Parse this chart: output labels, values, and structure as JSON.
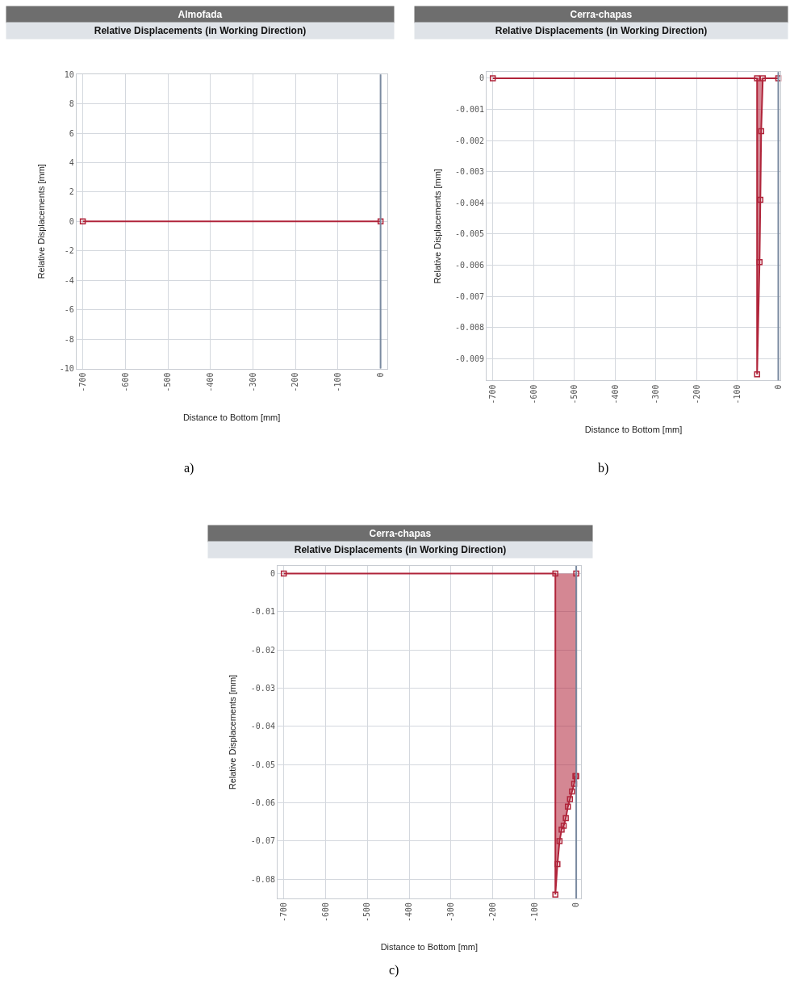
{
  "chart_data": [
    {
      "type": "line",
      "title": "Almofada",
      "subtitle": "Relative Displacements (in Working Direction)",
      "xlabel": "Distance to Bottom [mm]",
      "ylabel": "Relative Displacements [mm]",
      "annotations": [
        "a)"
      ],
      "series": [
        {
          "color": "#b0243a",
          "x": [
            -700,
            0
          ],
          "values": [
            0,
            0
          ]
        }
      ],
      "xlim": [
        -715,
        15
      ],
      "xticks": [
        -700,
        -600,
        -500,
        -400,
        -300,
        -200,
        -100,
        0
      ],
      "ylim": [
        -10,
        10
      ],
      "yticks": [
        -10,
        -8,
        -6,
        -4,
        -2,
        0,
        2,
        4,
        6,
        8,
        10
      ],
      "ref_lines": [
        {
          "axis": "x",
          "value": 0,
          "color": "#7a8aa0"
        }
      ],
      "grid": true,
      "marker": "square",
      "line_style": "solid"
    },
    {
      "type": "area",
      "title": "Cerra-chapas",
      "subtitle": "Relative Displacements (in Working Direction)",
      "xlabel": "Distance to Bottom [mm]",
      "ylabel": "Relative Displacements [mm]",
      "annotations": [
        "b)"
      ],
      "series": [
        {
          "color": "#b0243a",
          "x": [
            -700,
            -52,
            -52,
            -46,
            -44,
            -42,
            -38,
            0
          ],
          "values": [
            0,
            0,
            -0.0095,
            -0.0059,
            -0.0039,
            -0.0017,
            0,
            0
          ]
        }
      ],
      "xlim": [
        -715,
        5
      ],
      "xticks": [
        -700,
        -600,
        -500,
        -400,
        -300,
        -200,
        -100,
        0
      ],
      "ylim": [
        -0.0097,
        0.0002
      ],
      "yticks": [
        -0.009,
        -0.008,
        -0.007,
        -0.006,
        -0.005,
        -0.004,
        -0.003,
        -0.002,
        -0.001,
        0
      ],
      "ref_lines": [
        {
          "axis": "x",
          "value": 0,
          "color": "#7a8aa0"
        }
      ],
      "grid": true,
      "marker": "square",
      "line_style": "solid"
    },
    {
      "type": "area",
      "title": "Cerra-chapas",
      "subtitle": "Relative Displacements (in Working Direction)",
      "xlabel": "Distance to Bottom [mm]",
      "ylabel": "Relative Displacements [mm]",
      "annotations": [
        "c)"
      ],
      "series": [
        {
          "color": "#b0243a",
          "x": [
            -700,
            -50,
            -50,
            -45,
            -40,
            -35,
            -30,
            -25,
            -20,
            -15,
            -10,
            -5,
            -2,
            0,
            0
          ],
          "values": [
            0,
            0,
            -0.084,
            -0.076,
            -0.07,
            -0.067,
            -0.066,
            -0.064,
            -0.061,
            -0.059,
            -0.057,
            -0.055,
            -0.053,
            -0.053,
            0
          ]
        }
      ],
      "xlim": [
        -715,
        11
      ],
      "xticks": [
        -700,
        -600,
        -500,
        -400,
        -300,
        -200,
        -100,
        0
      ],
      "ylim": [
        -0.085,
        0.002
      ],
      "yticks": [
        -0.08,
        -0.07,
        -0.06,
        -0.05,
        -0.04,
        -0.03,
        -0.02,
        -0.01,
        0
      ],
      "ref_lines": [
        {
          "axis": "x",
          "value": 0,
          "color": "#7a8aa0"
        }
      ],
      "grid": true,
      "marker": "square",
      "line_style": "solid"
    }
  ]
}
